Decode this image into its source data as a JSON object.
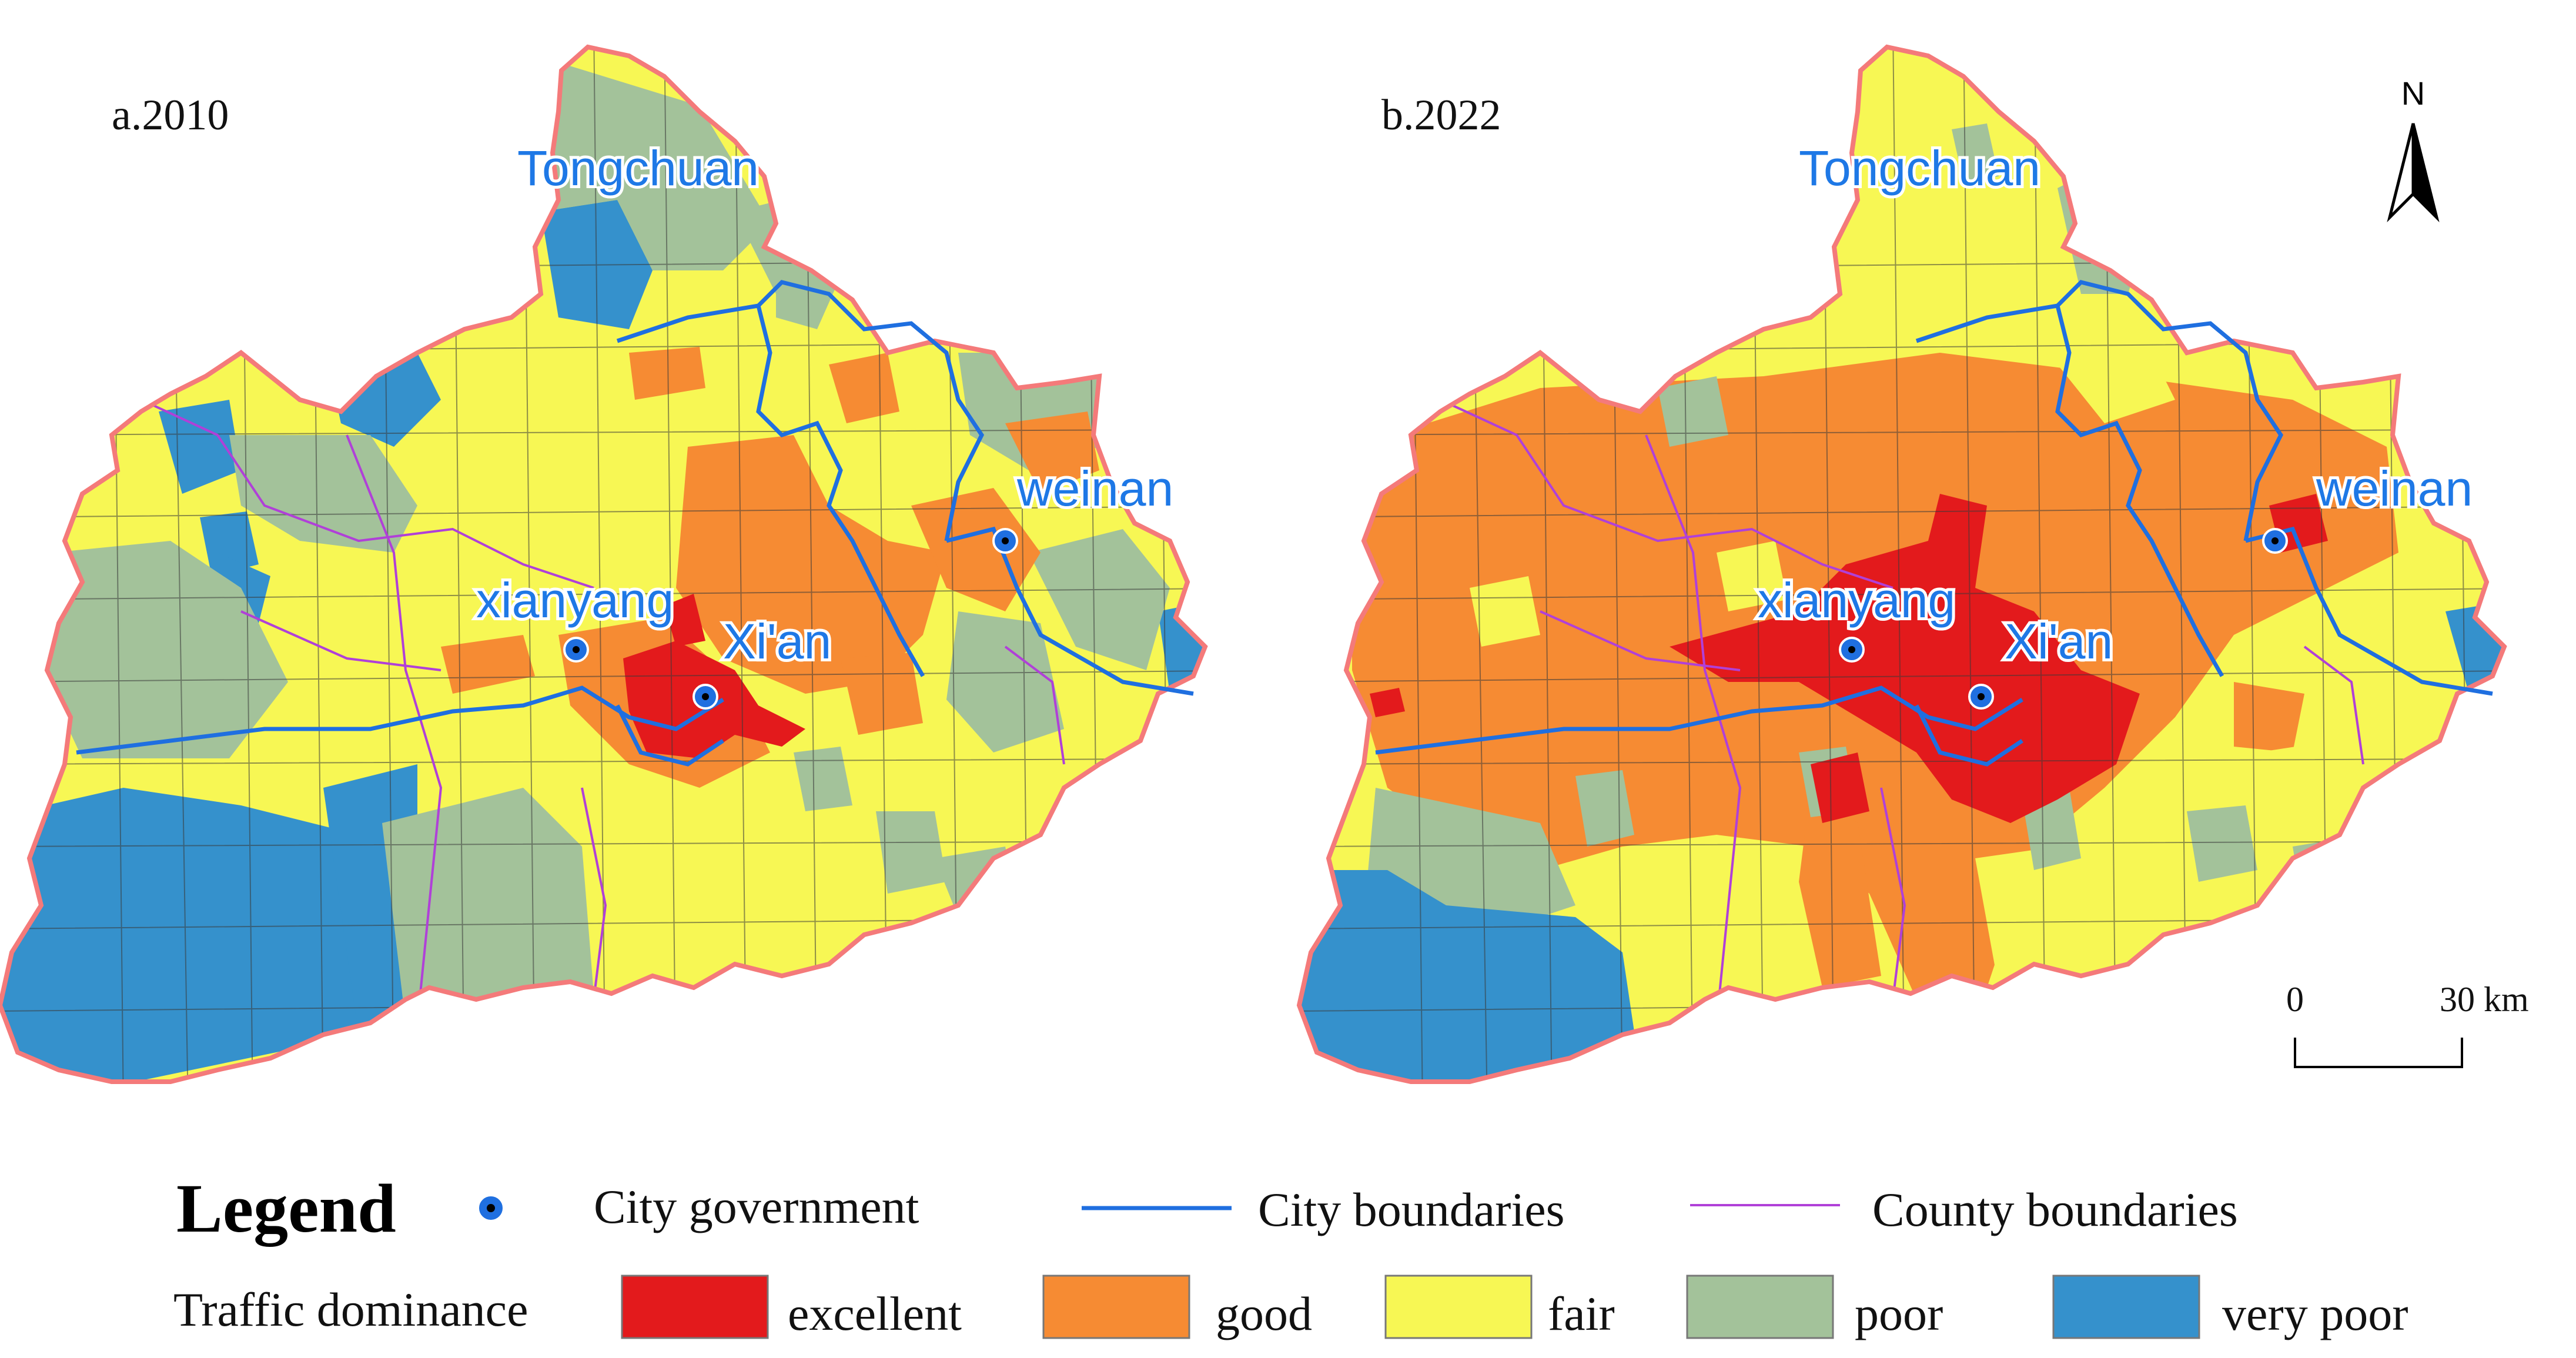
{
  "panels": [
    {
      "id": "a",
      "title": "a.2010"
    },
    {
      "id": "b",
      "title": "b.2022"
    }
  ],
  "city_labels": {
    "tongchuan": "Tongchuan",
    "xianyang": "xianyang",
    "xian": "Xi'an",
    "weinan": "weinan"
  },
  "north_arrow": {
    "label": "N"
  },
  "scale_bar": {
    "start": "0",
    "end": "30 km"
  },
  "legend": {
    "heading": "Legend",
    "city_government": "City government",
    "city_boundaries": "City boundaries",
    "county_boundaries": "County boundaries",
    "category_title": "Traffic dominance",
    "classes": [
      {
        "label": "excellent",
        "color": "#e31a1c"
      },
      {
        "label": "good",
        "color": "#f68b33"
      },
      {
        "label": "fair",
        "color": "#f7f754"
      },
      {
        "label": "poor",
        "color": "#a3c29a"
      },
      {
        "label": "very poor",
        "color": "#3591cc"
      }
    ]
  },
  "colors": {
    "region_outline": "#f47a7a",
    "city_boundary": "#1f6fe0",
    "county_boundary": "#b040d8",
    "city_marker": "#1f6fe0"
  }
}
